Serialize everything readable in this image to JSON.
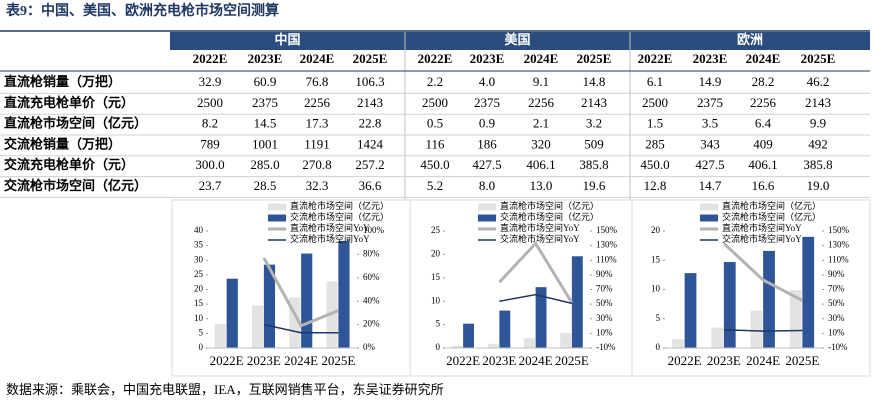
{
  "title": "表9：中国、美国、欧洲充电枪市场空间测算",
  "table": {
    "groups": [
      "中国",
      "美国",
      "欧洲"
    ],
    "columns": [
      "2022E",
      "2023E",
      "2024E",
      "2025E",
      "2022E",
      "2023E",
      "2024E",
      "2025E",
      "2022E",
      "2023E",
      "2024E",
      "2025E"
    ],
    "rows": [
      {
        "label": "直流枪销量（万把）",
        "values": [
          "32.9",
          "60.9",
          "76.8",
          "106.3",
          "2.2",
          "4.0",
          "9.1",
          "14.8",
          "6.1",
          "14.9",
          "28.2",
          "46.2"
        ]
      },
      {
        "label": "直流充电枪单价（元）",
        "values": [
          "2500",
          "2375",
          "2256",
          "2143",
          "2500",
          "2375",
          "2256",
          "2143",
          "2500",
          "2375",
          "2256",
          "2143"
        ]
      },
      {
        "label": "直流枪市场空间（亿元）",
        "values": [
          "8.2",
          "14.5",
          "17.3",
          "22.8",
          "0.5",
          "0.9",
          "2.1",
          "3.2",
          "1.5",
          "3.5",
          "6.4",
          "9.9"
        ]
      },
      {
        "label": "交流枪销量（万把）",
        "values": [
          "789",
          "1001",
          "1191",
          "1424",
          "116",
          "186",
          "320",
          "509",
          "285",
          "343",
          "409",
          "492"
        ]
      },
      {
        "label": "交流充电枪单价（元）",
        "values": [
          "300.0",
          "285.0",
          "270.8",
          "257.2",
          "450.0",
          "427.5",
          "406.1",
          "385.8",
          "450.0",
          "427.5",
          "406.1",
          "385.8"
        ]
      },
      {
        "label": "交流枪市场空间（亿元）",
        "values": [
          "23.7",
          "28.5",
          "32.3",
          "36.6",
          "5.2",
          "8.0",
          "13.0",
          "19.6",
          "12.8",
          "14.7",
          "16.6",
          "19.0"
        ]
      }
    ]
  },
  "chart_data": [
    {
      "type": "bar",
      "categories": [
        "2022E",
        "2023E",
        "2024E",
        "2025E"
      ],
      "ylim": [
        0,
        40
      ],
      "yticks": [
        0,
        5,
        10,
        15,
        20,
        25,
        30,
        35,
        40
      ],
      "y2lim": [
        0,
        100
      ],
      "y2ticks": [
        {
          "value": 0,
          "label": "0%"
        },
        {
          "value": 20,
          "label": "20%"
        },
        {
          "value": 40,
          "label": "40%"
        },
        {
          "value": 60,
          "label": "60%"
        },
        {
          "value": 80,
          "label": "80%"
        },
        {
          "value": 100,
          "label": "100%"
        }
      ],
      "series": [
        {
          "name": "直流枪市场空间（亿元）",
          "color": "#e3e3e3",
          "type": "bar",
          "values": [
            8.2,
            14.5,
            17.3,
            22.8
          ]
        },
        {
          "name": "交流枪市场空间（亿元）",
          "color": "#2e5597",
          "type": "bar",
          "values": [
            23.7,
            28.5,
            32.3,
            36.6
          ]
        },
        {
          "name": "直流枪市场空间YoY",
          "color": "#b3b3b3",
          "type": "line",
          "axis": "y2",
          "values": [
            null,
            77,
            19,
            32
          ]
        },
        {
          "name": "交流枪市场空间YoY",
          "color": "#1f3864",
          "type": "line",
          "axis": "y2",
          "values": [
            null,
            20,
            13,
            13
          ]
        }
      ]
    },
    {
      "type": "bar",
      "categories": [
        "2022E",
        "2023E",
        "2024E",
        "2025E"
      ],
      "ylim": [
        0,
        25
      ],
      "yticks": [
        0,
        5,
        10,
        15,
        20,
        25
      ],
      "y2lim": [
        -10,
        150
      ],
      "y2ticks": [
        {
          "value": -10,
          "label": "-10%"
        },
        {
          "value": 10,
          "label": "10%"
        },
        {
          "value": 30,
          "label": "30%"
        },
        {
          "value": 50,
          "label": "50%"
        },
        {
          "value": 70,
          "label": "70%"
        },
        {
          "value": 90,
          "label": "90%"
        },
        {
          "value": 110,
          "label": "110%"
        },
        {
          "value": 130,
          "label": "130%"
        },
        {
          "value": 150,
          "label": "150%"
        }
      ],
      "series": [
        {
          "name": "直流枪市场空间（亿元）",
          "color": "#e3e3e3",
          "type": "bar",
          "values": [
            0.5,
            0.9,
            2.1,
            3.2
          ]
        },
        {
          "name": "交流枪市场空间（亿元）",
          "color": "#2e5597",
          "type": "bar",
          "values": [
            5.2,
            8.0,
            13.0,
            19.6
          ]
        },
        {
          "name": "直流枪市场空间YoY",
          "color": "#b3b3b3",
          "type": "line",
          "axis": "y2",
          "values": [
            null,
            80,
            133,
            52
          ]
        },
        {
          "name": "交流枪市场空间YoY",
          "color": "#1f3864",
          "type": "line",
          "axis": "y2",
          "values": [
            null,
            54,
            63,
            51
          ]
        }
      ]
    },
    {
      "type": "bar",
      "categories": [
        "2022E",
        "2023E",
        "2024E",
        "2025E"
      ],
      "ylim": [
        0,
        20
      ],
      "yticks": [
        0,
        5,
        10,
        15,
        20
      ],
      "y2lim": [
        -10,
        150
      ],
      "y2ticks": [
        {
          "value": -10,
          "label": "-10%"
        },
        {
          "value": 10,
          "label": "10%"
        },
        {
          "value": 30,
          "label": "30%"
        },
        {
          "value": 50,
          "label": "50%"
        },
        {
          "value": 70,
          "label": "70%"
        },
        {
          "value": 90,
          "label": "90%"
        },
        {
          "value": 110,
          "label": "110%"
        },
        {
          "value": 130,
          "label": "130%"
        },
        {
          "value": 150,
          "label": "150%"
        }
      ],
      "series": [
        {
          "name": "直流枪市场空间（亿元）",
          "color": "#e3e3e3",
          "type": "bar",
          "values": [
            1.5,
            3.5,
            6.4,
            9.9
          ]
        },
        {
          "name": "交流枪市场空间（亿元）",
          "color": "#2e5597",
          "type": "bar",
          "values": [
            12.8,
            14.7,
            16.6,
            19.0
          ]
        },
        {
          "name": "直流枪市场空间YoY",
          "color": "#b3b3b3",
          "type": "line",
          "axis": "y2",
          "values": [
            null,
            133,
            83,
            55
          ]
        },
        {
          "name": "交流枪市场空间YoY",
          "color": "#1f3864",
          "type": "line",
          "axis": "y2",
          "values": [
            null,
            15,
            13,
            14
          ]
        }
      ]
    }
  ],
  "source": "数据来源：乘联会，中国充电联盟，IEA，互联网销售平台，东吴证券研究所"
}
